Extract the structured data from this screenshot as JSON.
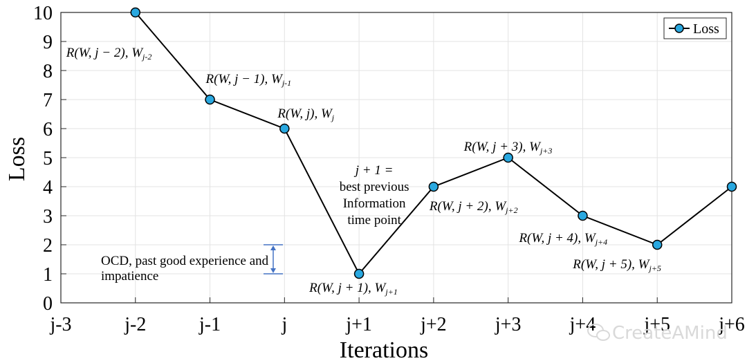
{
  "chart_data": {
    "type": "line",
    "title": "",
    "xlabel": "Iterations",
    "ylabel": "Loss",
    "categories": [
      "j-3",
      "j-2",
      "j-1",
      "j",
      "j+1",
      "j+2",
      "j+3",
      "j+4",
      "j+5",
      "j+6"
    ],
    "ylim": [
      0,
      10
    ],
    "yticks": [
      0,
      1,
      2,
      3,
      4,
      5,
      6,
      7,
      8,
      9,
      10
    ],
    "grid": true,
    "legend": {
      "position": "top-right",
      "entries": [
        "Loss"
      ]
    },
    "series": [
      {
        "name": "Loss",
        "color": "#29a8e0",
        "x": [
          "j-2",
          "j-1",
          "j",
          "j+1",
          "j+2",
          "j+3",
          "j+4",
          "j+5",
          "j+6"
        ],
        "values": [
          10,
          7,
          6,
          1,
          4,
          5,
          3,
          2,
          4
        ]
      }
    ],
    "annotations": [
      {
        "main": "R(W, j − 2), W",
        "sub": "j-2"
      },
      {
        "main": "R(W, j − 1), W",
        "sub": "j-1"
      },
      {
        "main": "R(W, j), W",
        "sub": "j"
      },
      {
        "main": "R(W, j + 1), W",
        "sub": "j+1"
      },
      {
        "main": "R(W, j + 2), W",
        "sub": "j+2"
      },
      {
        "main": "R(W, j + 3), W",
        "sub": "j+3"
      },
      {
        "main": "R(W, j + 4), W",
        "sub": "j+4"
      },
      {
        "main": "R(W, j + 5), W",
        "sub": "j+5"
      }
    ],
    "best_point_note": [
      "j + 1 =",
      "best previous",
      "Information",
      "time point"
    ],
    "range_note": {
      "lines": [
        "OCD, past good experience and",
        "impatience"
      ],
      "from": 1,
      "to": 2,
      "color": "#4472c4"
    }
  },
  "watermark": "CreateAMind"
}
